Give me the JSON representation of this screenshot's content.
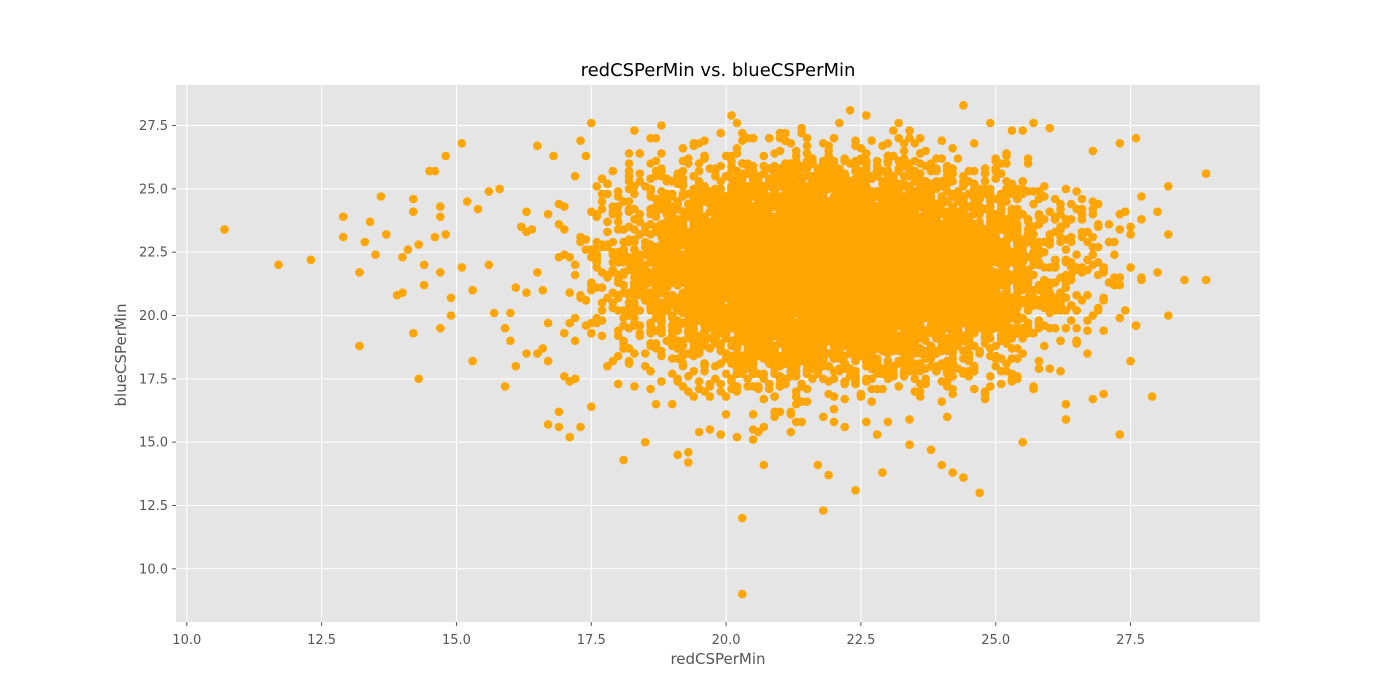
{
  "chart_data": {
    "type": "scatter",
    "title": "redCSPerMin vs. blueCSPerMin",
    "xlabel": "redCSPerMin",
    "ylabel": "blueCSPerMin",
    "xlim": [
      9.8,
      29.9
    ],
    "ylim": [
      7.9,
      29.1
    ],
    "xticks": [
      10.0,
      12.5,
      15.0,
      17.5,
      20.0,
      22.5,
      25.0,
      27.5
    ],
    "xtick_labels": [
      "10.0",
      "12.5",
      "15.0",
      "17.5",
      "20.0",
      "22.5",
      "25.0",
      "27.5"
    ],
    "yticks": [
      10.0,
      12.5,
      15.0,
      17.5,
      20.0,
      22.5,
      25.0,
      27.5
    ],
    "ytick_labels": [
      "10.0",
      "12.5",
      "15.0",
      "17.5",
      "20.0",
      "22.5",
      "25.0",
      "27.5"
    ],
    "grid": true,
    "style": "ggplot",
    "colors": {
      "points": "#FFA500",
      "plot_bg": "#E5E5E5",
      "grid": "#FFFFFF"
    },
    "series": [
      {
        "points": [
          [
            10.7,
            23.4
          ],
          [
            11.7,
            22.0
          ],
          [
            12.3,
            22.2
          ],
          [
            12.9,
            23.9
          ],
          [
            12.9,
            23.1
          ],
          [
            13.2,
            21.7
          ],
          [
            13.2,
            18.8
          ],
          [
            13.3,
            22.9
          ],
          [
            13.4,
            23.7
          ],
          [
            13.5,
            22.4
          ],
          [
            13.6,
            24.7
          ],
          [
            13.7,
            23.2
          ],
          [
            13.9,
            20.8
          ],
          [
            14.0,
            20.9
          ],
          [
            14.0,
            22.3
          ],
          [
            14.1,
            22.6
          ],
          [
            14.2,
            24.6
          ],
          [
            14.2,
            24.1
          ],
          [
            14.2,
            19.3
          ],
          [
            14.3,
            17.5
          ],
          [
            14.3,
            22.8
          ],
          [
            14.4,
            22.0
          ],
          [
            14.4,
            21.2
          ],
          [
            14.5,
            25.7
          ],
          [
            14.6,
            25.7
          ],
          [
            14.6,
            23.1
          ],
          [
            14.7,
            24.3
          ],
          [
            14.7,
            23.9
          ],
          [
            14.7,
            21.7
          ],
          [
            14.7,
            19.5
          ],
          [
            14.8,
            26.3
          ],
          [
            14.8,
            23.2
          ],
          [
            14.9,
            20.0
          ],
          [
            14.9,
            20.7
          ],
          [
            15.1,
            26.8
          ],
          [
            15.1,
            21.9
          ],
          [
            15.2,
            24.5
          ],
          [
            15.3,
            18.2
          ],
          [
            15.3,
            21.0
          ],
          [
            15.4,
            24.2
          ],
          [
            15.6,
            22.0
          ],
          [
            15.6,
            24.9
          ],
          [
            15.7,
            20.1
          ],
          [
            15.8,
            25.0
          ],
          [
            15.9,
            17.2
          ],
          [
            15.9,
            19.5
          ],
          [
            16.0,
            19.0
          ],
          [
            16.1,
            18.0
          ],
          [
            16.3,
            18.5
          ],
          [
            16.5,
            26.7
          ],
          [
            16.5,
            18.5
          ],
          [
            16.7,
            15.7
          ],
          [
            16.8,
            26.3
          ],
          [
            16.9,
            16.2
          ],
          [
            16.9,
            15.6
          ],
          [
            17.0,
            17.6
          ],
          [
            17.1,
            17.4
          ],
          [
            17.3,
            26.9
          ],
          [
            17.3,
            15.6
          ],
          [
            17.5,
            27.6
          ],
          [
            17.5,
            16.4
          ],
          [
            17.9,
            25.7
          ],
          [
            18.1,
            14.3
          ],
          [
            18.2,
            26.4
          ],
          [
            18.5,
            15.0
          ],
          [
            18.7,
            27.0
          ],
          [
            18.8,
            27.5
          ],
          [
            19.1,
            14.5
          ],
          [
            19.2,
            26.1
          ],
          [
            19.3,
            14.6
          ],
          [
            19.3,
            14.2
          ],
          [
            19.5,
            15.4
          ],
          [
            19.7,
            15.5
          ],
          [
            19.9,
            27.2
          ],
          [
            19.9,
            15.3
          ],
          [
            20.1,
            27.9
          ],
          [
            20.2,
            27.6
          ],
          [
            20.3,
            12.0
          ],
          [
            20.3,
            9.0
          ],
          [
            20.4,
            27.0
          ],
          [
            20.7,
            14.1
          ],
          [
            20.8,
            27.0
          ],
          [
            21.1,
            27.2
          ],
          [
            21.2,
            15.4
          ],
          [
            21.5,
            27.0
          ],
          [
            21.7,
            14.1
          ],
          [
            21.8,
            12.3
          ],
          [
            21.9,
            13.7
          ],
          [
            22.1,
            27.6
          ],
          [
            22.3,
            28.1
          ],
          [
            22.4,
            13.1
          ],
          [
            22.6,
            27.9
          ],
          [
            22.8,
            15.3
          ],
          [
            22.9,
            13.8
          ],
          [
            23.2,
            27.6
          ],
          [
            23.4,
            14.9
          ],
          [
            23.6,
            27.0
          ],
          [
            23.8,
            14.7
          ],
          [
            24.0,
            14.1
          ],
          [
            24.2,
            13.8
          ],
          [
            24.4,
            28.3
          ],
          [
            24.4,
            13.6
          ],
          [
            24.7,
            13.0
          ],
          [
            24.9,
            27.6
          ],
          [
            25.3,
            27.3
          ],
          [
            25.5,
            15.0
          ],
          [
            25.7,
            27.6
          ],
          [
            26.3,
            15.9
          ],
          [
            26.3,
            16.5
          ],
          [
            26.8,
            26.5
          ],
          [
            26.8,
            16.7
          ],
          [
            27.0,
            16.9
          ],
          [
            27.3,
            26.8
          ],
          [
            27.3,
            15.3
          ],
          [
            27.6,
            27.0
          ],
          [
            27.6,
            19.6
          ],
          [
            27.7,
            21.4
          ],
          [
            27.9,
            16.8
          ],
          [
            28.0,
            24.1
          ],
          [
            28.2,
            25.1
          ],
          [
            28.9,
            25.6
          ],
          [
            28.9,
            21.4
          ],
          [
            16.2,
            23.5
          ],
          [
            16.6,
            21.0
          ],
          [
            16.9,
            24.4
          ],
          [
            17.0,
            19.3
          ],
          [
            17.4,
            22.6
          ],
          [
            17.8,
            18.0
          ],
          [
            18.0,
            24.9
          ],
          [
            18.3,
            20.2
          ],
          [
            18.6,
            17.1
          ],
          [
            19.0,
            25.3
          ],
          [
            19.4,
            18.4
          ],
          [
            19.8,
            24.0
          ],
          [
            20.5,
            17.2
          ],
          [
            20.9,
            25.6
          ],
          [
            21.4,
            16.6
          ],
          [
            21.9,
            26.3
          ],
          [
            22.5,
            16.9
          ],
          [
            23.0,
            26.0
          ],
          [
            23.6,
            17.3
          ],
          [
            24.1,
            25.8
          ],
          [
            24.6,
            17.8
          ],
          [
            25.0,
            25.4
          ],
          [
            25.4,
            18.3
          ],
          [
            25.8,
            24.6
          ],
          [
            26.2,
            19.0
          ],
          [
            26.6,
            23.8
          ],
          [
            26.9,
            20.3
          ],
          [
            27.1,
            22.9
          ],
          [
            27.3,
            21.5
          ],
          [
            26.4,
            21.9
          ]
        ],
        "dense_cluster": {
          "center": [
            22.0,
            21.8
          ],
          "spread": [
            1.8,
            1.9
          ],
          "count": 9800,
          "seed": 7
        }
      }
    ]
  }
}
